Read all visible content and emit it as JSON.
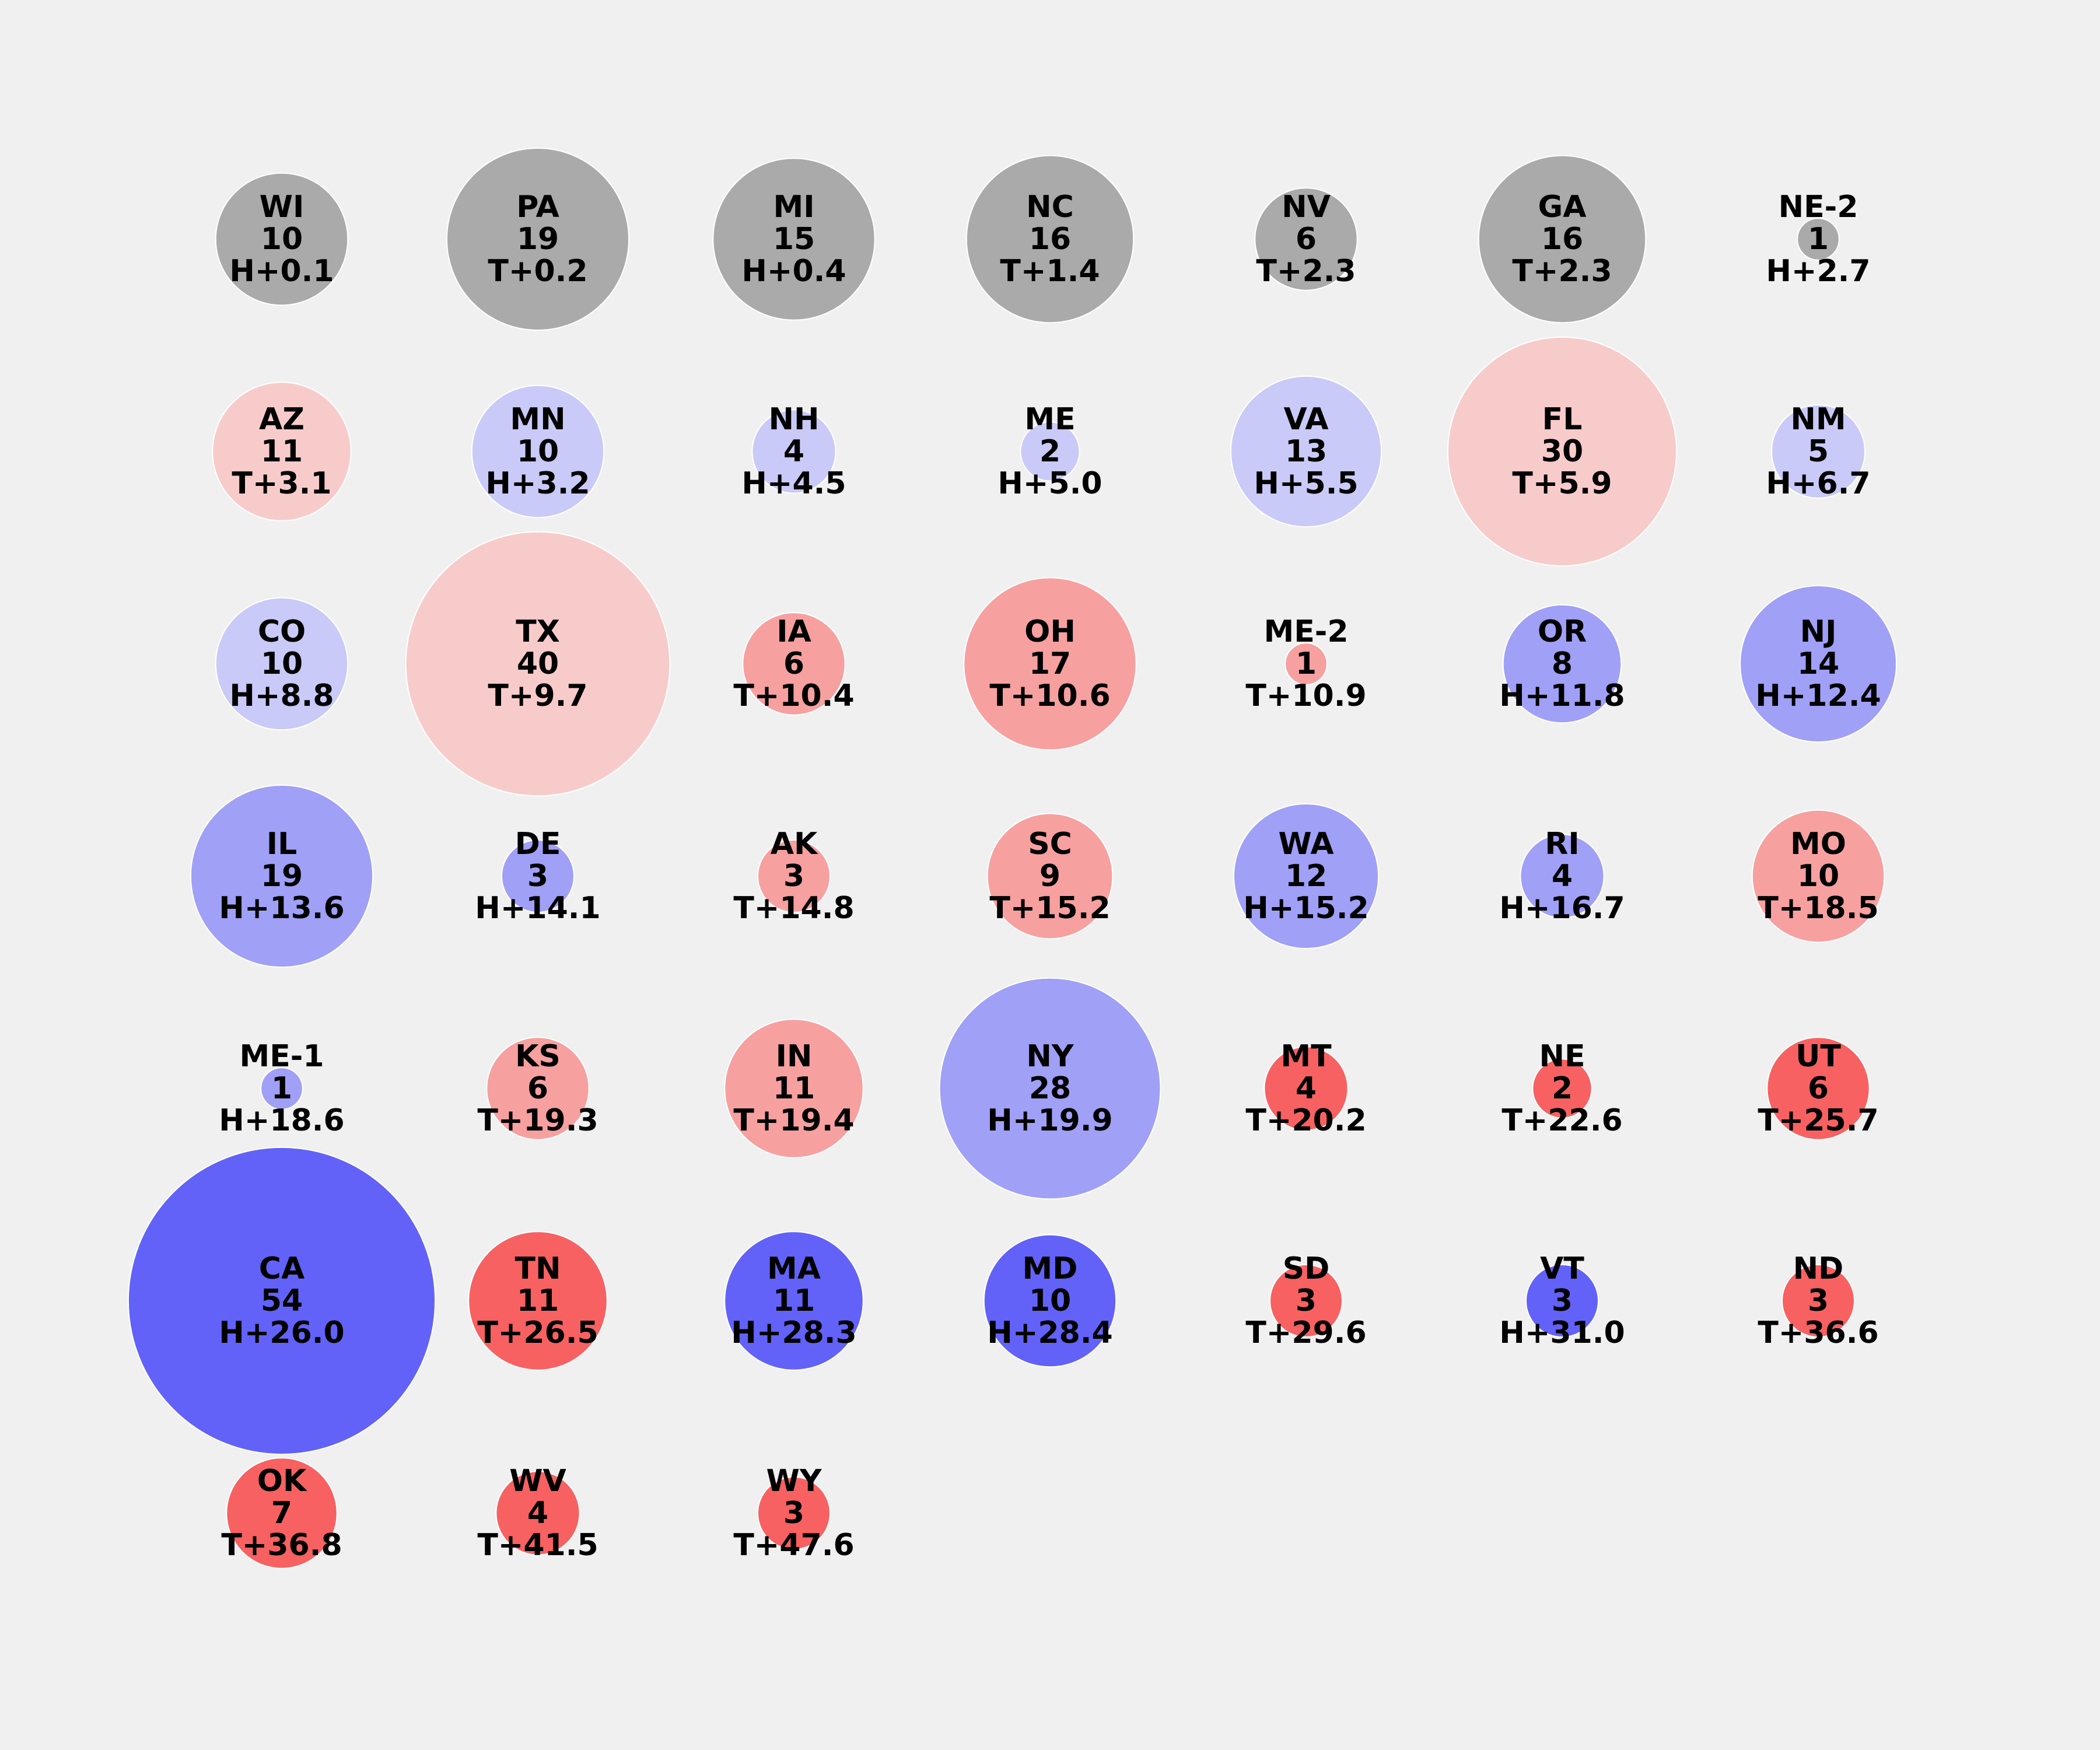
{
  "chart_data": {
    "type": "scatter",
    "title": "",
    "xlabel": "",
    "ylabel": "",
    "grid": false,
    "legend": "none",
    "columns": 7,
    "colors": {
      "background": "#f0f0f0",
      "tossup": "#aaaaaa",
      "lean_h": "#cacaf8",
      "likely_h": "#a0a0f7",
      "safe_h": "#6262f8",
      "lean_t": "#f8cbcb",
      "likely_t": "#f7a0a0",
      "safe_t": "#f76161",
      "outline": "#ffffff"
    },
    "points": [
      {
        "state": "WI",
        "votes": "10",
        "margin": "H+0.1",
        "category": "tossup"
      },
      {
        "state": "PA",
        "votes": "19",
        "margin": "T+0.2",
        "category": "tossup"
      },
      {
        "state": "MI",
        "votes": "15",
        "margin": "H+0.4",
        "category": "tossup"
      },
      {
        "state": "NC",
        "votes": "16",
        "margin": "T+1.4",
        "category": "tossup"
      },
      {
        "state": "NV",
        "votes": "6",
        "margin": "T+2.3",
        "category": "tossup"
      },
      {
        "state": "GA",
        "votes": "16",
        "margin": "T+2.3",
        "category": "tossup"
      },
      {
        "state": "NE-2",
        "votes": "1",
        "margin": "H+2.7",
        "category": "tossup"
      },
      {
        "state": "AZ",
        "votes": "11",
        "margin": "T+3.1",
        "category": "lean_t"
      },
      {
        "state": "MN",
        "votes": "10",
        "margin": "H+3.2",
        "category": "lean_h"
      },
      {
        "state": "NH",
        "votes": "4",
        "margin": "H+4.5",
        "category": "lean_h"
      },
      {
        "state": "ME",
        "votes": "2",
        "margin": "H+5.0",
        "category": "lean_h"
      },
      {
        "state": "VA",
        "votes": "13",
        "margin": "H+5.5",
        "category": "lean_h"
      },
      {
        "state": "FL",
        "votes": "30",
        "margin": "T+5.9",
        "category": "lean_t"
      },
      {
        "state": "NM",
        "votes": "5",
        "margin": "H+6.7",
        "category": "lean_h"
      },
      {
        "state": "CO",
        "votes": "10",
        "margin": "H+8.8",
        "category": "lean_h"
      },
      {
        "state": "TX",
        "votes": "40",
        "margin": "T+9.7",
        "category": "lean_t"
      },
      {
        "state": "IA",
        "votes": "6",
        "margin": "T+10.4",
        "category": "likely_t"
      },
      {
        "state": "OH",
        "votes": "17",
        "margin": "T+10.6",
        "category": "likely_t"
      },
      {
        "state": "ME-2",
        "votes": "1",
        "margin": "T+10.9",
        "category": "likely_t"
      },
      {
        "state": "OR",
        "votes": "8",
        "margin": "H+11.8",
        "category": "likely_h"
      },
      {
        "state": "NJ",
        "votes": "14",
        "margin": "H+12.4",
        "category": "likely_h"
      },
      {
        "state": "IL",
        "votes": "19",
        "margin": "H+13.6",
        "category": "likely_h"
      },
      {
        "state": "DE",
        "votes": "3",
        "margin": "H+14.1",
        "category": "likely_h"
      },
      {
        "state": "AK",
        "votes": "3",
        "margin": "T+14.8",
        "category": "likely_t"
      },
      {
        "state": "SC",
        "votes": "9",
        "margin": "T+15.2",
        "category": "likely_t"
      },
      {
        "state": "WA",
        "votes": "12",
        "margin": "H+15.2",
        "category": "likely_h"
      },
      {
        "state": "RI",
        "votes": "4",
        "margin": "H+16.7",
        "category": "likely_h"
      },
      {
        "state": "MO",
        "votes": "10",
        "margin": "T+18.5",
        "category": "likely_t"
      },
      {
        "state": "ME-1",
        "votes": "1",
        "margin": "H+18.6",
        "category": "likely_h"
      },
      {
        "state": "KS",
        "votes": "6",
        "margin": "T+19.3",
        "category": "likely_t"
      },
      {
        "state": "IN",
        "votes": "11",
        "margin": "T+19.4",
        "category": "likely_t"
      },
      {
        "state": "NY",
        "votes": "28",
        "margin": "H+19.9",
        "category": "likely_h"
      },
      {
        "state": "MT",
        "votes": "4",
        "margin": "T+20.2",
        "category": "safe_t"
      },
      {
        "state": "NE",
        "votes": "2",
        "margin": "T+22.6",
        "category": "safe_t"
      },
      {
        "state": "UT",
        "votes": "6",
        "margin": "T+25.7",
        "category": "safe_t"
      },
      {
        "state": "CA",
        "votes": "54",
        "margin": "H+26.0",
        "category": "safe_h"
      },
      {
        "state": "TN",
        "votes": "11",
        "margin": "T+26.5",
        "category": "safe_t"
      },
      {
        "state": "MA",
        "votes": "11",
        "margin": "H+28.3",
        "category": "safe_h"
      },
      {
        "state": "MD",
        "votes": "10",
        "margin": "H+28.4",
        "category": "safe_h"
      },
      {
        "state": "SD",
        "votes": "3",
        "margin": "T+29.6",
        "category": "safe_t"
      },
      {
        "state": "VT",
        "votes": "3",
        "margin": "H+31.0",
        "category": "safe_h"
      },
      {
        "state": "ND",
        "votes": "3",
        "margin": "T+36.6",
        "category": "safe_t"
      },
      {
        "state": "OK",
        "votes": "7",
        "margin": "T+36.8",
        "category": "safe_t"
      },
      {
        "state": "WV",
        "votes": "4",
        "margin": "T+41.5",
        "category": "safe_t"
      },
      {
        "state": "WY",
        "votes": "3",
        "margin": "T+47.6",
        "category": "safe_t"
      }
    ]
  }
}
